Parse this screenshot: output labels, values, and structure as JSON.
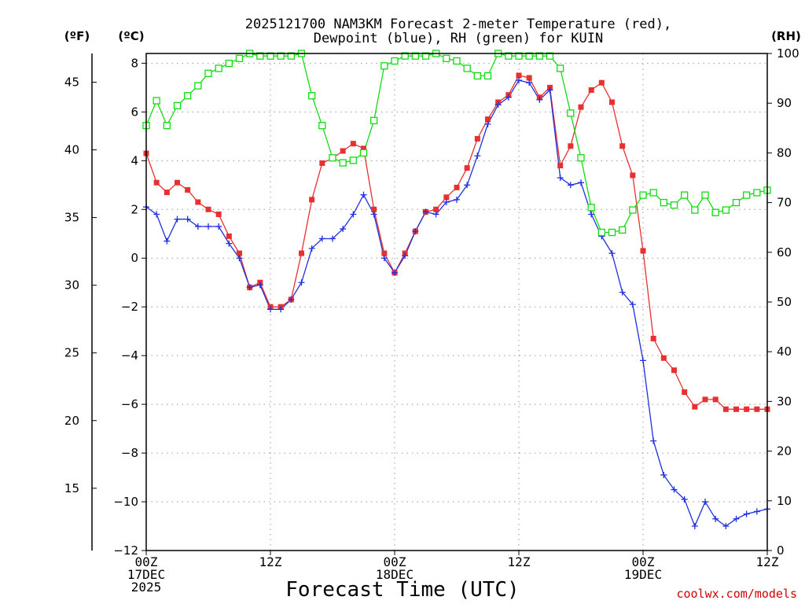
{
  "chart_data": {
    "type": "line",
    "title_line1": "2025121700 NAM3KM Forecast 2-meter Temperature (red),",
    "title_line2": "Dewpoint (blue), RH (green) for KUIN",
    "xlabel": "Forecast Time (UTC)",
    "credit": "coolwx.com/models",
    "left_unit_f": "(ºF)",
    "left_unit_c": "(ºC)",
    "right_unit": "(RH)",
    "x_range_hours": [
      0,
      60
    ],
    "x_ticks": [
      {
        "hour": 0,
        "line1": "00Z",
        "line2": "17DEC",
        "line3": "2025"
      },
      {
        "hour": 12,
        "line1": "12Z",
        "line2": "",
        "line3": ""
      },
      {
        "hour": 24,
        "line1": "00Z",
        "line2": "18DEC",
        "line3": ""
      },
      {
        "hour": 36,
        "line1": "12Z",
        "line2": "",
        "line3": ""
      },
      {
        "hour": 48,
        "line1": "00Z",
        "line2": "19DEC",
        "line3": ""
      },
      {
        "hour": 60,
        "line1": "12Z",
        "line2": "",
        "line3": ""
      }
    ],
    "celsius_axis": {
      "range": [
        -12,
        8.4
      ],
      "ticks": [
        "8",
        "6",
        "4",
        "2",
        "0",
        "−2",
        "−4",
        "−6",
        "−8",
        "−10",
        "−12"
      ],
      "tick_values": [
        8,
        6,
        4,
        2,
        0,
        -2,
        -4,
        -6,
        -8,
        -10,
        -12
      ]
    },
    "fahrenheit_axis": {
      "ticks": [
        "45",
        "40",
        "35",
        "30",
        "25",
        "20",
        "15"
      ],
      "tick_values": [
        45,
        40,
        35,
        30,
        25,
        20,
        15
      ]
    },
    "rh_axis": {
      "range": [
        0,
        100
      ],
      "ticks": [
        "100",
        "90",
        "80",
        "70",
        "60",
        "50",
        "40",
        "30",
        "20",
        "10",
        "0"
      ],
      "tick_values": [
        100,
        90,
        80,
        70,
        60,
        50,
        40,
        30,
        20,
        10,
        0
      ]
    },
    "series": [
      {
        "name": "Temperature",
        "axis": "celsius",
        "color": "#e83030",
        "marker": "filled-square",
        "values": [
          4.3,
          3.1,
          2.7,
          3.1,
          2.8,
          2.3,
          2.0,
          1.8,
          0.9,
          0.2,
          -1.2,
          -1.0,
          -2.0,
          -2.0,
          -1.7,
          0.2,
          2.4,
          3.9,
          4.1,
          4.4,
          4.7,
          4.5,
          2.0,
          0.2,
          -0.6,
          0.2,
          1.1,
          1.9,
          2.0,
          2.5,
          2.9,
          3.7,
          4.9,
          5.7,
          6.4,
          6.7,
          7.5,
          7.4,
          6.6,
          7.0,
          3.8,
          4.6,
          6.2,
          6.9,
          7.2,
          6.4,
          4.6,
          3.4,
          0.3,
          -3.3,
          -4.1,
          -4.6,
          -5.5,
          -6.1,
          -5.8,
          -5.8,
          -6.2,
          -6.2,
          -6.2,
          -6.2,
          -6.2
        ]
      },
      {
        "name": "Dewpoint",
        "axis": "celsius",
        "color": "#2030e0",
        "marker": "plus",
        "values": [
          2.1,
          1.8,
          0.7,
          1.6,
          1.6,
          1.3,
          1.3,
          1.3,
          0.6,
          0.0,
          -1.2,
          -1.1,
          -2.1,
          -2.1,
          -1.7,
          -1.0,
          0.4,
          0.8,
          0.8,
          1.2,
          1.8,
          2.6,
          1.8,
          0.0,
          -0.6,
          0.1,
          1.1,
          1.9,
          1.8,
          2.3,
          2.4,
          3.0,
          4.2,
          5.5,
          6.3,
          6.6,
          7.3,
          7.2,
          6.5,
          6.9,
          3.3,
          3.0,
          3.1,
          1.8,
          0.9,
          0.2,
          -1.4,
          -1.9,
          -4.2,
          -7.5,
          -8.9,
          -9.5,
          -9.9,
          -11.0,
          -10.0,
          -10.7,
          -11.0,
          -10.7,
          -10.5,
          -10.4,
          -10.3
        ]
      },
      {
        "name": "RH",
        "axis": "rh",
        "color": "#10dd10",
        "marker": "open-square",
        "values": [
          85.5,
          90.5,
          85.5,
          89.5,
          91.5,
          93.5,
          96,
          97,
          98,
          99,
          100,
          99.5,
          99.5,
          99.5,
          99.5,
          100,
          91.5,
          85.5,
          79,
          78,
          78.5,
          80,
          86.5,
          97.5,
          98.5,
          99.5,
          99.5,
          99.5,
          100,
          99,
          98.5,
          97,
          95.5,
          95.5,
          100,
          99.5,
          99.5,
          99.5,
          99.5,
          99.5,
          97,
          88,
          79,
          69,
          64,
          64,
          64.5,
          68.5,
          71.5,
          72,
          70,
          69.5,
          71.5,
          68.5,
          71.5,
          68,
          68.5,
          70,
          71.5,
          72,
          72.5
        ]
      }
    ]
  }
}
